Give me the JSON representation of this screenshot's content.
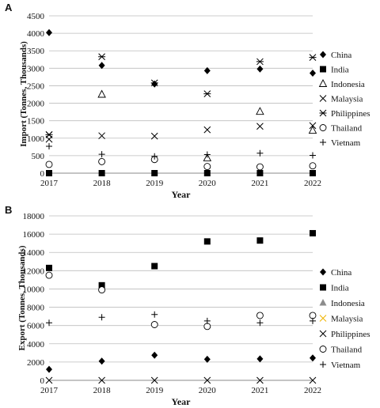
{
  "chart_data": [
    {
      "panel_label": "A",
      "type": "scatter",
      "xlabel": "Year",
      "ylabel": "Import (Tonnes, Thousands)",
      "x": [
        "2017",
        "2018",
        "2019",
        "2020",
        "2021",
        "2022"
      ],
      "ylim": [
        0,
        4500
      ],
      "yticks": [
        0,
        500,
        1000,
        1500,
        2000,
        2500,
        3000,
        3500,
        4000,
        4500
      ],
      "grid": true,
      "legend_position": "right",
      "series": [
        {
          "name": "China",
          "marker": "diamond",
          "values": [
            4020,
            3080,
            2550,
            2930,
            2980,
            2860
          ]
        },
        {
          "name": "India",
          "marker": "square",
          "values": [
            0,
            0,
            0,
            0,
            0,
            0
          ]
        },
        {
          "name": "Indonesia",
          "marker": "triangle",
          "values": [
            null,
            2250,
            null,
            430,
            1760,
            1220
          ]
        },
        {
          "name": "Malaysia",
          "marker": "x",
          "values": [
            970,
            null,
            null,
            null,
            null,
            null
          ]
        },
        {
          "name": "Philippines",
          "marker": "asterisk",
          "values": [
            1100,
            3330,
            2580,
            2270,
            3190,
            3310
          ]
        },
        {
          "name": "Philippines",
          "marker": "x",
          "values": [
            1100,
            1070,
            1060,
            1240,
            1340,
            1360
          ]
        },
        {
          "name": "Thailand",
          "marker": "circle",
          "values": [
            250,
            330,
            390,
            190,
            180,
            210
          ]
        },
        {
          "name": "Vietnam",
          "marker": "plus",
          "values": [
            770,
            540,
            480,
            530,
            570,
            510
          ]
        }
      ],
      "legend": [
        {
          "label": "China",
          "marker": "diamond",
          "color": "#000000"
        },
        {
          "label": "India",
          "marker": "square",
          "color": "#000000"
        },
        {
          "label": "Indonesia",
          "marker": "triangle",
          "color": "#000000"
        },
        {
          "label": "Malaysia",
          "marker": "x",
          "color": "#000000"
        },
        {
          "label": "Philippines",
          "marker": "asterisk",
          "color": "#000000"
        },
        {
          "label": "Thailand",
          "marker": "circle",
          "color": "#000000"
        },
        {
          "label": "Vietnam",
          "marker": "plus",
          "color": "#000000"
        }
      ]
    },
    {
      "panel_label": "B",
      "type": "scatter",
      "xlabel": "Year",
      "ylabel": "Export (Tonnes, Thousands)",
      "x": [
        "2017",
        "2018",
        "2019",
        "2020",
        "2021",
        "2022"
      ],
      "ylim": [
        0,
        18000
      ],
      "yticks": [
        0,
        2000,
        4000,
        6000,
        8000,
        10000,
        12000,
        14000,
        16000,
        18000
      ],
      "grid": true,
      "legend_position": "right",
      "series": [
        {
          "name": "China",
          "marker": "diamond",
          "values": [
            1200,
            2100,
            2750,
            2300,
            2350,
            2450
          ]
        },
        {
          "name": "India",
          "marker": "square",
          "values": [
            12300,
            10400,
            12500,
            15200,
            15300,
            16100
          ]
        },
        {
          "name": "Philippines",
          "marker": "x",
          "values": [
            0,
            0,
            0,
            0,
            0,
            0
          ]
        },
        {
          "name": "Thailand",
          "marker": "circle",
          "values": [
            11500,
            9900,
            6100,
            5900,
            7100,
            7100
          ]
        },
        {
          "name": "Vietnam",
          "marker": "plus",
          "values": [
            6300,
            6900,
            7200,
            6500,
            6300,
            6500
          ]
        }
      ],
      "legend": [
        {
          "label": "China",
          "marker": "diamond",
          "color": "#000000"
        },
        {
          "label": "India",
          "marker": "square",
          "color": "#000000"
        },
        {
          "label": "Indonesia",
          "marker": "triangle-filled",
          "color": "#8c8c8c"
        },
        {
          "label": "Malaysia",
          "marker": "x",
          "color": "#f0b400"
        },
        {
          "label": "Philippines",
          "marker": "x",
          "color": "#000000"
        },
        {
          "label": "Thailand",
          "marker": "circle",
          "color": "#000000"
        },
        {
          "label": "Vietnam",
          "marker": "plus",
          "color": "#000000"
        }
      ]
    }
  ]
}
